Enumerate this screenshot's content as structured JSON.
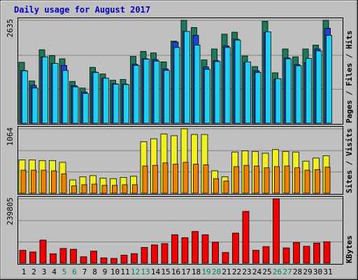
{
  "chart_data": {
    "type": "bar",
    "title": "Daily usage for August 2017",
    "days": [
      "1",
      "2",
      "3",
      "4",
      "5",
      "6",
      "7",
      "8",
      "9",
      "10",
      "11",
      "12",
      "13",
      "14",
      "15",
      "16",
      "17",
      "18",
      "19",
      "20",
      "21",
      "22",
      "23",
      "24",
      "25",
      "26",
      "27",
      "28",
      "29",
      "30",
      "31"
    ],
    "weekend_days": [
      "5",
      "6",
      "12",
      "13",
      "19",
      "20",
      "26",
      "27"
    ],
    "colors": {
      "hits": "#1a7a5a",
      "files": "#2040d8",
      "pages": "#20d0f0",
      "visits": "#f0f020",
      "sites": "#f08000",
      "kbytes": "#f00000",
      "weekday_label": "#000000",
      "weekend_label": "#008060",
      "title": "#0000c0"
    },
    "panels": [
      {
        "id": "top",
        "max_label": "2635",
        "ymax": 2635,
        "side_labels": [
          {
            "text": "Pages",
            "color": "#20d0f0"
          },
          {
            "text": " / ",
            "color": "#000000"
          },
          {
            "text": "Files",
            "color": "#2040d8"
          },
          {
            "text": " / ",
            "color": "#000000"
          },
          {
            "text": "Hits",
            "color": "#1a7a5a"
          }
        ],
        "series": [
          {
            "name": "Hits",
            "values": [
              1560,
              1080,
              1880,
              1730,
              1650,
              1070,
              900,
              1430,
              1260,
              1100,
              1120,
              1710,
              1840,
              1800,
              1570,
              2100,
              2635,
              2450,
              1620,
              1900,
              2280,
              2330,
              1720,
              1450,
              2610,
              1290,
              1900,
              1700,
              1900,
              2000,
              2635
            ]
          },
          {
            "name": "Files",
            "values": [
              1350,
              970,
              1700,
              1530,
              1480,
              960,
              800,
              1310,
              1150,
              1010,
              1000,
              1510,
              1650,
              1630,
              1390,
              2080,
              2350,
              2250,
              1440,
              1600,
              1980,
              2150,
              1550,
              1340,
              2320,
              1120,
              1670,
              1500,
              1550,
              1900,
              2430
            ]
          },
          {
            "name": "Pages",
            "values": [
              1340,
              900,
              1700,
              1530,
              1350,
              930,
              760,
              1300,
              1150,
              1000,
              990,
              1480,
              1640,
              1590,
              1350,
              1940,
              2350,
              2000,
              1380,
              1580,
              1940,
              2130,
              1570,
              1300,
              2340,
              1140,
              1650,
              1470,
              1660,
              1850,
              2250
            ]
          }
        ]
      },
      {
        "id": "middle",
        "max_label": "1064",
        "ymax": 1064,
        "side_labels": [
          {
            "text": "Sites",
            "color": "#f08000"
          },
          {
            "text": " / ",
            "color": "#000000"
          },
          {
            "text": "Visits",
            "color": "#f0f020"
          }
        ],
        "series": [
          {
            "name": "Visits",
            "values": [
              550,
              550,
              540,
              540,
              510,
              220,
              270,
              290,
              250,
              240,
              260,
              280,
              850,
              900,
              980,
              950,
              1064,
              970,
              970,
              370,
              270,
              680,
              700,
              690,
              660,
              720,
              690,
              680,
              530,
              580,
              620
            ]
          },
          {
            "name": "Sites",
            "values": [
              380,
              380,
              380,
              370,
              320,
              120,
              140,
              150,
              130,
              130,
              140,
              140,
              450,
              460,
              500,
              480,
              510,
              480,
              470,
              240,
              200,
              440,
              460,
              450,
              420,
              440,
              450,
              420,
              380,
              390,
              430
            ]
          }
        ]
      },
      {
        "id": "bottom",
        "max_label": "239805",
        "ymax": 239805,
        "side_labels": [
          {
            "text": "KBytes",
            "color": "#f00000"
          }
        ],
        "series": [
          {
            "name": "KBytes",
            "values": [
              48000,
              42000,
              86000,
              35000,
              55000,
              52000,
              24000,
              45000,
              20000,
              18000,
              30000,
              36000,
              59000,
              68000,
              73000,
              106000,
              95000,
              118000,
              106000,
              78000,
              40000,
              112000,
              193000,
              48000,
              62000,
              239805,
              57000,
              77000,
              63000,
              75000,
              80000
            ]
          }
        ]
      }
    ]
  }
}
